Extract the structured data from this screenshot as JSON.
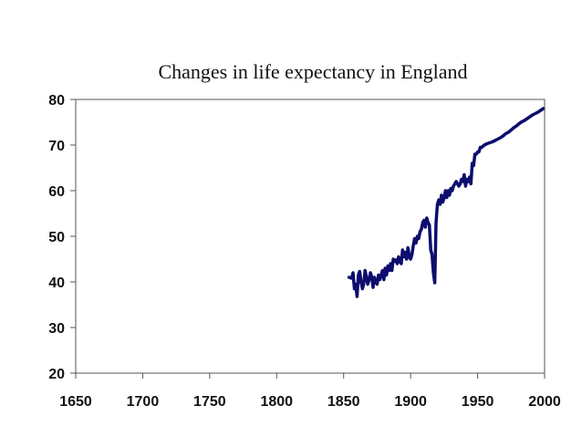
{
  "chart_data": {
    "type": "line",
    "title": "Changes in life expectancy in England",
    "xlabel": "",
    "ylabel": "",
    "xlim": [
      1650,
      2000
    ],
    "ylim": [
      20,
      80
    ],
    "x_ticks": [
      1650,
      1700,
      1750,
      1800,
      1850,
      1900,
      1950,
      2000
    ],
    "y_ticks": [
      20,
      30,
      40,
      50,
      60,
      70,
      80
    ],
    "grid": false,
    "legend": null,
    "series": [
      {
        "name": "Life expectancy",
        "color": "#0d0d6e",
        "points": [
          [
            1854,
            41
          ],
          [
            1856,
            40.8
          ],
          [
            1857,
            42
          ],
          [
            1858,
            38.5
          ],
          [
            1859,
            39.5
          ],
          [
            1860,
            36.8
          ],
          [
            1861,
            41.5
          ],
          [
            1862,
            42.3
          ],
          [
            1863,
            40
          ],
          [
            1864,
            38.5
          ],
          [
            1865,
            39.5
          ],
          [
            1866,
            42.5
          ],
          [
            1867,
            41
          ],
          [
            1868,
            39.5
          ],
          [
            1869,
            40.5
          ],
          [
            1870,
            42
          ],
          [
            1871,
            41
          ],
          [
            1872,
            38.8
          ],
          [
            1873,
            41
          ],
          [
            1874,
            40
          ],
          [
            1875,
            39.5
          ],
          [
            1876,
            41.5
          ],
          [
            1877,
            40.5
          ],
          [
            1878,
            41.5
          ],
          [
            1879,
            42.5
          ],
          [
            1880,
            40.5
          ],
          [
            1881,
            43
          ],
          [
            1882,
            41.5
          ],
          [
            1883,
            43.5
          ],
          [
            1884,
            42.5
          ],
          [
            1885,
            44
          ],
          [
            1886,
            42.5
          ],
          [
            1887,
            45
          ],
          [
            1888,
            44.5
          ],
          [
            1889,
            44.8
          ],
          [
            1890,
            44
          ],
          [
            1891,
            45.5
          ],
          [
            1892,
            44.5
          ],
          [
            1893,
            44
          ],
          [
            1894,
            47
          ],
          [
            1895,
            45.5
          ],
          [
            1896,
            46.5
          ],
          [
            1897,
            45
          ],
          [
            1898,
            47.5
          ],
          [
            1899,
            45.5
          ],
          [
            1900,
            45
          ],
          [
            1901,
            46
          ],
          [
            1902,
            48
          ],
          [
            1903,
            49.5
          ],
          [
            1904,
            48.5
          ],
          [
            1905,
            50
          ],
          [
            1906,
            49.5
          ],
          [
            1907,
            51
          ],
          [
            1908,
            51.5
          ],
          [
            1909,
            53
          ],
          [
            1910,
            53.5
          ],
          [
            1911,
            52
          ],
          [
            1912,
            54
          ],
          [
            1913,
            53
          ],
          [
            1914,
            52.5
          ],
          [
            1915,
            47
          ],
          [
            1916,
            46
          ],
          [
            1917,
            42
          ],
          [
            1918,
            39.8
          ],
          [
            1919,
            53
          ],
          [
            1920,
            57
          ],
          [
            1921,
            58
          ],
          [
            1922,
            57
          ],
          [
            1923,
            59
          ],
          [
            1924,
            57.5
          ],
          [
            1925,
            58.5
          ],
          [
            1926,
            60
          ],
          [
            1927,
            58.5
          ],
          [
            1928,
            60
          ],
          [
            1929,
            59
          ],
          [
            1930,
            60.5
          ],
          [
            1931,
            60
          ],
          [
            1932,
            61
          ],
          [
            1933,
            61.5
          ],
          [
            1934,
            62
          ],
          [
            1935,
            61.5
          ],
          [
            1936,
            61
          ],
          [
            1937,
            61.5
          ],
          [
            1938,
            62.5
          ],
          [
            1939,
            62
          ],
          [
            1940,
            63.5
          ],
          [
            1941,
            61
          ],
          [
            1942,
            62.5
          ],
          [
            1943,
            62
          ],
          [
            1944,
            63
          ],
          [
            1945,
            61.5
          ],
          [
            1946,
            66
          ],
          [
            1947,
            65.5
          ],
          [
            1948,
            68
          ],
          [
            1949,
            68
          ],
          [
            1950,
            68.5
          ],
          [
            1951,
            68.5
          ],
          [
            1952,
            69.5
          ],
          [
            1953,
            69.5
          ],
          [
            1955,
            70
          ],
          [
            1957,
            70.3
          ],
          [
            1959,
            70.5
          ],
          [
            1961,
            70.7
          ],
          [
            1963,
            71
          ],
          [
            1965,
            71.3
          ],
          [
            1967,
            71.6
          ],
          [
            1969,
            72
          ],
          [
            1971,
            72.5
          ],
          [
            1973,
            72.8
          ],
          [
            1975,
            73.3
          ],
          [
            1977,
            73.8
          ],
          [
            1979,
            74.2
          ],
          [
            1981,
            74.7
          ],
          [
            1983,
            75.1
          ],
          [
            1985,
            75.4
          ],
          [
            1987,
            75.8
          ],
          [
            1989,
            76.2
          ],
          [
            1991,
            76.6
          ],
          [
            1993,
            76.9
          ],
          [
            1995,
            77.2
          ],
          [
            1997,
            77.6
          ],
          [
            1999,
            78
          ]
        ]
      }
    ]
  }
}
